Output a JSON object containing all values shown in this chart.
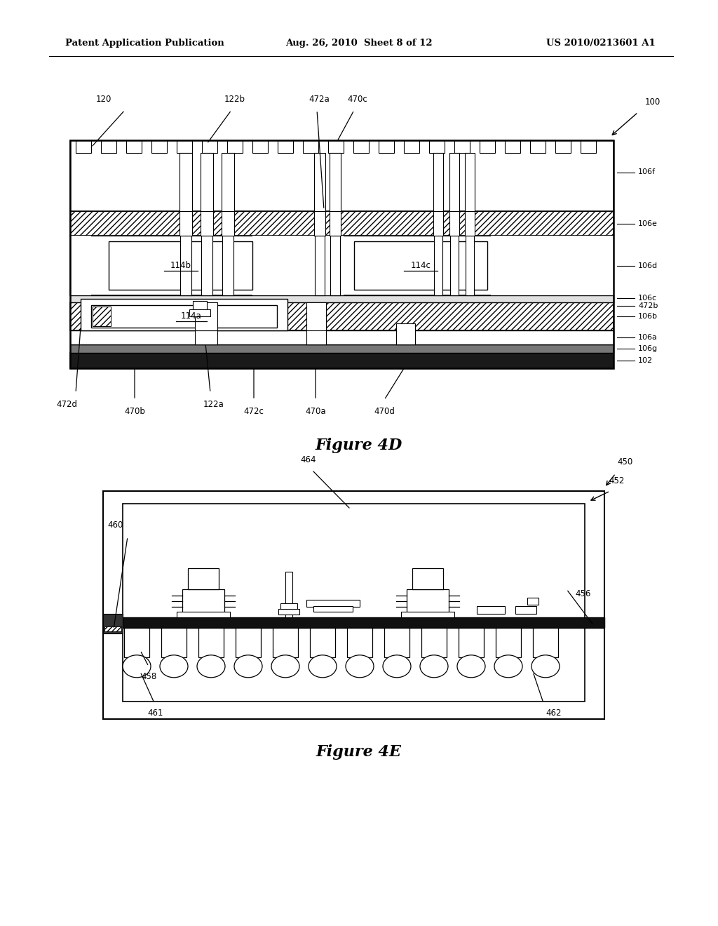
{
  "header_left": "Patent Application Publication",
  "header_mid": "Aug. 26, 2010  Sheet 8 of 12",
  "header_right": "US 2010/0213601 A1",
  "fig4d_title": "Figure 4D",
  "fig4e_title": "Figure 4E",
  "bg_color": "#ffffff",
  "line_color": "#000000"
}
